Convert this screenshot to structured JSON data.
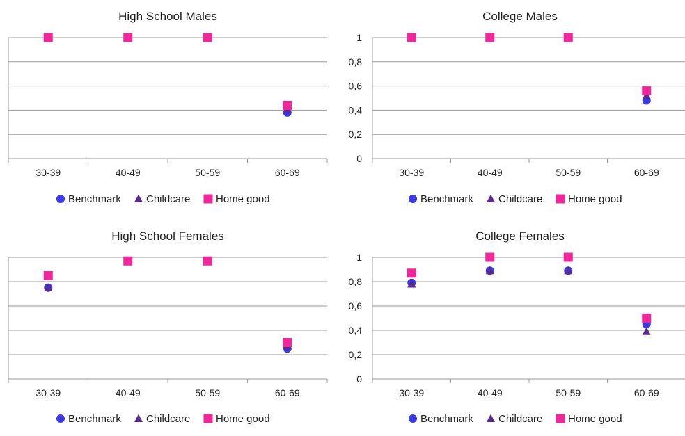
{
  "chart_data": [
    {
      "type": "scatter",
      "title": "High School Males",
      "categories": [
        "30-39",
        "40-49",
        "50-59",
        "60-69"
      ],
      "ylim": [
        0,
        1
      ],
      "yticks": [],
      "grid": true,
      "legend_position": "bottom",
      "series": [
        {
          "name": "Benchmark",
          "values": [
            1.0,
            1.0,
            1.0,
            0.38
          ]
        },
        {
          "name": "Childcare",
          "values": [
            1.0,
            1.0,
            1.0,
            0.41
          ]
        },
        {
          "name": "Home good",
          "values": [
            1.0,
            1.0,
            1.0,
            0.44
          ]
        }
      ]
    },
    {
      "type": "scatter",
      "title": "College Males",
      "categories": [
        "30-39",
        "40-49",
        "50-59",
        "60-69"
      ],
      "ylim": [
        0,
        1
      ],
      "yticks": [
        "0",
        "0,2",
        "0,4",
        "0,6",
        "0,8",
        "1"
      ],
      "grid": true,
      "legend_position": "bottom",
      "series": [
        {
          "name": "Benchmark",
          "values": [
            1.0,
            1.0,
            1.0,
            0.48
          ]
        },
        {
          "name": "Childcare",
          "values": [
            1.0,
            1.0,
            1.0,
            0.52
          ]
        },
        {
          "name": "Home good",
          "values": [
            1.0,
            1.0,
            1.0,
            0.56
          ]
        }
      ]
    },
    {
      "type": "scatter",
      "title": "High School Females",
      "categories": [
        "30-39",
        "40-49",
        "50-59",
        "60-69"
      ],
      "ylim": [
        0,
        1
      ],
      "yticks": [],
      "grid": true,
      "legend_position": "bottom",
      "series": [
        {
          "name": "Benchmark",
          "values": [
            0.75,
            0.97,
            0.97,
            0.25
          ]
        },
        {
          "name": "Childcare",
          "values": [
            0.75,
            0.97,
            0.97,
            0.27
          ]
        },
        {
          "name": "Home good",
          "values": [
            0.85,
            0.97,
            0.97,
            0.3
          ]
        }
      ]
    },
    {
      "type": "scatter",
      "title": "College Females",
      "categories": [
        "30-39",
        "40-49",
        "50-59",
        "60-69"
      ],
      "ylim": [
        0,
        1
      ],
      "yticks": [
        "0",
        "0,2",
        "0,4",
        "0,6",
        "0,8",
        "1"
      ],
      "grid": true,
      "legend_position": "bottom",
      "series": [
        {
          "name": "Benchmark",
          "values": [
            0.79,
            0.89,
            0.89,
            0.45
          ]
        },
        {
          "name": "Childcare",
          "values": [
            0.78,
            0.89,
            0.89,
            0.39
          ]
        },
        {
          "name": "Home good",
          "values": [
            0.87,
            1.0,
            1.0,
            0.5
          ]
        }
      ]
    }
  ],
  "series_colors": {
    "Benchmark": "#3a3ae6",
    "Childcare": "#5b2a90",
    "Home good": "#f0279a"
  },
  "series_markers": {
    "Benchmark": "circle",
    "Childcare": "triangle",
    "Home good": "square"
  },
  "grid_color": "#9a9a9a"
}
